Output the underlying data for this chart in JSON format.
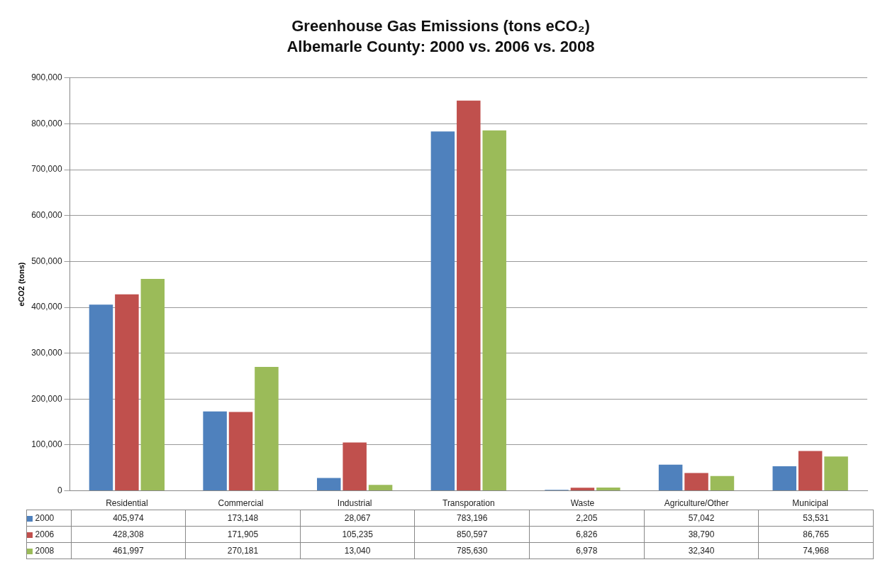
{
  "chart_data": {
    "type": "bar",
    "title": "Greenhouse Gas Emissions (tons eCO₂)",
    "subtitle": "Albemarle County: 2000 vs. 2006 vs. 2008",
    "ylabel": "eCO2 (tons)",
    "categories": [
      "Residential",
      "Commercial",
      "Industrial",
      "Transporation",
      "Waste",
      "Agriculture/Other",
      "Municipal"
    ],
    "series": [
      {
        "name": "2000",
        "color": "#4f81bd",
        "values": [
          405974,
          173148,
          28067,
          783196,
          2205,
          57042,
          53531
        ],
        "value_labels": [
          "405,974",
          "173,148",
          "28,067",
          "783,196",
          "2,205",
          "57,042",
          "53,531"
        ]
      },
      {
        "name": "2006",
        "color": "#c0504d",
        "values": [
          428308,
          171905,
          105235,
          850597,
          6826,
          38790,
          86765
        ],
        "value_labels": [
          "428,308",
          "171,905",
          "105,235",
          "850,597",
          "6,826",
          "38,790",
          "86,765"
        ]
      },
      {
        "name": "2008",
        "color": "#9bbb59",
        "values": [
          461997,
          270181,
          13040,
          785630,
          6978,
          32340,
          74968
        ],
        "value_labels": [
          "461,997",
          "270,181",
          "13,040",
          "785,630",
          "6,978",
          "32,340",
          "74,968"
        ]
      }
    ],
    "ylim": [
      0,
      900000
    ],
    "yticks": [
      0,
      {
        "value": 100000,
        "label": "100,000"
      },
      {
        "value": 200000,
        "label": "200,000"
      },
      {
        "value": 300000,
        "label": "300,000"
      },
      {
        "value": 400000,
        "label": "400,000"
      },
      {
        "value": 500000,
        "label": "500,000"
      },
      {
        "value": 600000,
        "label": "600,000"
      },
      {
        "value": 700000,
        "label": "700,000"
      },
      {
        "value": 800000,
        "label": "800,000"
      },
      {
        "value": 900000,
        "label": "900,000"
      }
    ],
    "grid": "y",
    "legend": "bottom"
  }
}
